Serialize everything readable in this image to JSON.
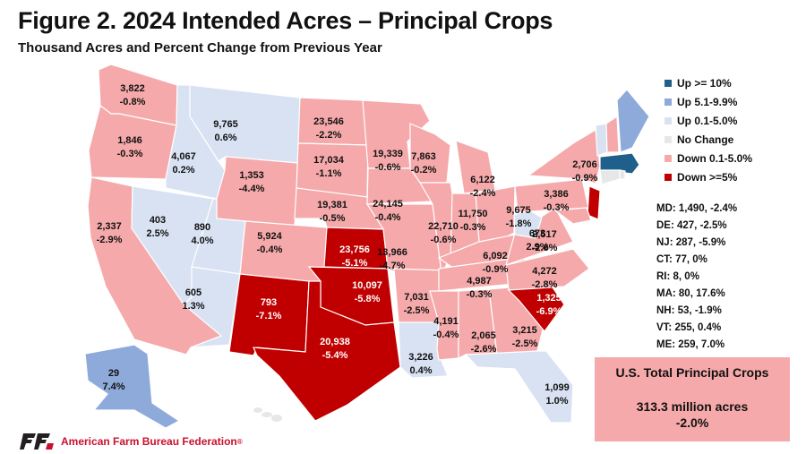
{
  "header": {
    "title": "Figure 2. 2024 Intended Acres – Principal Crops",
    "subtitle": "Thousand Acres and Percent Change from Previous Year"
  },
  "legend": [
    {
      "label": "Up >= 10%",
      "color": "#1f5f8b"
    },
    {
      "label": "Up 5.1-9.9%",
      "color": "#8eaadb"
    },
    {
      "label": "Up 0.1-5.0%",
      "color": "#d9e2f3"
    },
    {
      "label": "No Change",
      "color": "#e7e7e7"
    },
    {
      "label": "Down 0.1-5.0%",
      "color": "#f5a9aa"
    },
    {
      "label": "Down >=5%",
      "color": "#c00000"
    }
  ],
  "colors": {
    "up10": "#1f5f8b",
    "up5": "#8eaadb",
    "up0": "#d9e2f3",
    "nochange": "#e7e7e7",
    "down0": "#f5a9aa",
    "down5": "#c00000",
    "brand_red": "#c8102e",
    "brand_black": "#231f20"
  },
  "chart_data": {
    "type": "choropleth-map",
    "title": "Figure 2. 2024 Intended Acres – Principal Crops",
    "subtitle": "Thousand Acres and Percent Change from Previous Year",
    "states": [
      {
        "state": "WA",
        "acres": "3,822",
        "change": "-0.8%",
        "category": "down0"
      },
      {
        "state": "OR",
        "acres": "1,846",
        "change": "-0.3%",
        "category": "down0"
      },
      {
        "state": "CA",
        "acres": "2,337",
        "change": "-2.9%",
        "category": "down0"
      },
      {
        "state": "ID",
        "acres": "4,067",
        "change": "0.2%",
        "category": "up0"
      },
      {
        "state": "NV",
        "acres": "403",
        "change": "2.5%",
        "category": "up0"
      },
      {
        "state": "UT",
        "acres": "890",
        "change": "4.0%",
        "category": "up0"
      },
      {
        "state": "AZ",
        "acres": "605",
        "change": "1.3%",
        "category": "up0"
      },
      {
        "state": "MT",
        "acres": "9,765",
        "change": "0.6%",
        "category": "up0"
      },
      {
        "state": "WY",
        "acres": "1,353",
        "change": "-4.4%",
        "category": "down0"
      },
      {
        "state": "CO",
        "acres": "5,924",
        "change": "-0.4%",
        "category": "down0"
      },
      {
        "state": "NM",
        "acres": "793",
        "change": "-7.1%",
        "category": "down5"
      },
      {
        "state": "ND",
        "acres": "23,546",
        "change": "-2.2%",
        "category": "down0"
      },
      {
        "state": "SD",
        "acres": "17,034",
        "change": "-1.1%",
        "category": "down0"
      },
      {
        "state": "NE",
        "acres": "19,381",
        "change": "-0.5%",
        "category": "down0"
      },
      {
        "state": "KS",
        "acres": "23,756",
        "change": "-5.1%",
        "category": "down5"
      },
      {
        "state": "OK",
        "acres": "10,097",
        "change": "-5.8%",
        "category": "down5"
      },
      {
        "state": "TX",
        "acres": "20,938",
        "change": "-5.4%",
        "category": "down5"
      },
      {
        "state": "MN",
        "acres": "19,339",
        "change": "-0.6%",
        "category": "down0"
      },
      {
        "state": "IA",
        "acres": "24,145",
        "change": "-0.4%",
        "category": "down0"
      },
      {
        "state": "MO",
        "acres": "13,966",
        "change": "-4.7%",
        "category": "down0"
      },
      {
        "state": "AR",
        "acres": "7,031",
        "change": "-2.5%",
        "category": "down0"
      },
      {
        "state": "LA",
        "acres": "3,226",
        "change": "0.4%",
        "category": "up0"
      },
      {
        "state": "WI",
        "acres": "7,863",
        "change": "-0.2%",
        "category": "down0"
      },
      {
        "state": "IL",
        "acres": "22,710",
        "change": "-0.6%",
        "category": "down0"
      },
      {
        "state": "MI",
        "acres": "6,122",
        "change": "-2.4%",
        "category": "down0"
      },
      {
        "state": "IN",
        "acres": "11,750",
        "change": "-0.3%",
        "category": "down0"
      },
      {
        "state": "OH",
        "acres": "9,675",
        "change": "-1.8%",
        "category": "down0"
      },
      {
        "state": "KY",
        "acres": "6,092",
        "change": "-0.9%",
        "category": "down0"
      },
      {
        "state": "TN",
        "acres": "4,987",
        "change": "-0.3%",
        "category": "down0"
      },
      {
        "state": "MS",
        "acres": "4,191",
        "change": "-0.4%",
        "category": "down0"
      },
      {
        "state": "AL",
        "acres": "2,065",
        "change": "-2.6%",
        "category": "down0"
      },
      {
        "state": "GA",
        "acres": "3,215",
        "change": "-2.5%",
        "category": "down0"
      },
      {
        "state": "FL",
        "acres": "1,099",
        "change": "1.0%",
        "category": "up0"
      },
      {
        "state": "SC",
        "acres": "1,325",
        "change": "-6.9%",
        "category": "down5"
      },
      {
        "state": "NC",
        "acres": "4,272",
        "change": "-2.8%",
        "category": "down0"
      },
      {
        "state": "VA",
        "acres": "2,517",
        "change": "-2.6%",
        "category": "down0"
      },
      {
        "state": "WV",
        "acres": "673",
        "change": "2.9%",
        "category": "up0"
      },
      {
        "state": "PA",
        "acres": "3,386",
        "change": "-0.3%",
        "category": "down0"
      },
      {
        "state": "NY",
        "acres": "2,706",
        "change": "-0.9%",
        "category": "down0"
      },
      {
        "state": "AK",
        "acres": "29",
        "change": "7.4%",
        "category": "up5"
      },
      {
        "state": "MD",
        "acres": "1,490",
        "change": "-2.4%",
        "category": "down0"
      },
      {
        "state": "DE",
        "acres": "427",
        "change": "-2.5%",
        "category": "down0"
      },
      {
        "state": "NJ",
        "acres": "287",
        "change": "-5.9%",
        "category": "down5"
      },
      {
        "state": "CT",
        "acres": "77",
        "change": "0%",
        "category": "nochange"
      },
      {
        "state": "RI",
        "acres": "8",
        "change": "0%",
        "category": "nochange"
      },
      {
        "state": "MA",
        "acres": "80",
        "change": "17.6%",
        "category": "up10"
      },
      {
        "state": "NH",
        "acres": "53",
        "change": "-1.9%",
        "category": "down0"
      },
      {
        "state": "VT",
        "acres": "255",
        "change": "0.4%",
        "category": "up0"
      },
      {
        "state": "ME",
        "acres": "259",
        "change": "7.0%",
        "category": "up5"
      }
    ]
  },
  "small_states": [
    "MD: 1,490, -2.4%",
    "DE: 427, -2.5%",
    "NJ: 287, -5.9%",
    "CT: 77, 0%",
    "RI: 8, 0%",
    "MA: 80, 17.6%",
    "NH: 53, -1.9%",
    "VT: 255, 0.4%",
    "ME: 259, 7.0%"
  ],
  "total": {
    "title": "U.S. Total Principal Crops",
    "value": "313.3 million acres",
    "change": "-2.0%"
  },
  "footer": {
    "org": "American Farm Bureau Federation",
    "registered": "®"
  }
}
